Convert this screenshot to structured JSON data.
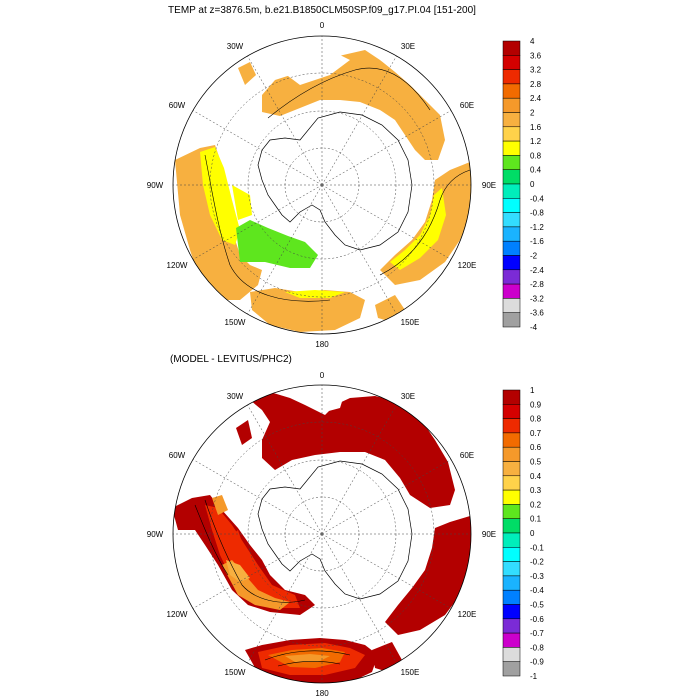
{
  "panels": [
    {
      "title": "TEMP at z=3876.5m, b.e21.B1850CLM50SP.f09_g17.PI.04 [151-200]",
      "lon_labels": [
        "0",
        "30E",
        "60E",
        "90E",
        "120E",
        "150E",
        "180",
        "150W",
        "120W",
        "90W",
        "60W",
        "30W"
      ],
      "colorbar": {
        "labels": [
          "4",
          "3.6",
          "3.2",
          "2.8",
          "2.4",
          "2",
          "1.6",
          "1.2",
          "0.8",
          "0.4",
          "0",
          "-0.4",
          "-0.8",
          "-1.2",
          "-1.6",
          "-2",
          "-2.4",
          "-2.8",
          "-3.2",
          "-3.6",
          "-4"
        ],
        "colors": [
          "#b30000",
          "#d40000",
          "#ee2a00",
          "#f26b00",
          "#f5992a",
          "#f7b040",
          "#ffd24a",
          "#ffff00",
          "#5ee61e",
          "#00dd66",
          "#00eebb",
          "#00ffff",
          "#33ddff",
          "#1ab3ff",
          "#0080ff",
          "#0000ff",
          "#7b2bd6",
          "#cc00cc",
          "#dcdcdc",
          "#a0a0a0"
        ]
      }
    },
    {
      "title": "(MODEL - LEVITUS/PHC2)",
      "lon_labels": [
        "0",
        "30E",
        "60E",
        "90E",
        "120E",
        "150E",
        "180",
        "150W",
        "120W",
        "90W",
        "60W",
        "30W"
      ],
      "colorbar": {
        "labels": [
          "1",
          "0.9",
          "0.8",
          "0.7",
          "0.6",
          "0.5",
          "0.4",
          "0.3",
          "0.2",
          "0.1",
          "0",
          "-0.1",
          "-0.2",
          "-0.3",
          "-0.4",
          "-0.5",
          "-0.6",
          "-0.7",
          "-0.8",
          "-0.9",
          "-1"
        ],
        "colors": [
          "#b30000",
          "#d40000",
          "#ee2a00",
          "#f26b00",
          "#f5992a",
          "#f7b040",
          "#ffd24a",
          "#ffff00",
          "#5ee61e",
          "#00dd66",
          "#00eebb",
          "#00ffff",
          "#33ddff",
          "#1ab3ff",
          "#0080ff",
          "#0000ff",
          "#7b2bd6",
          "#cc00cc",
          "#dcdcdc",
          "#a0a0a0"
        ]
      }
    }
  ]
}
